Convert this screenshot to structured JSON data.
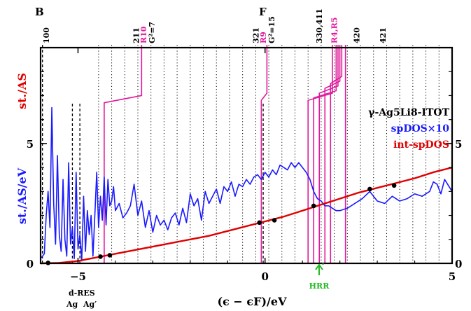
{
  "chart_data": {
    "type": "line",
    "xlim": [
      -6,
      5
    ],
    "ylim": [
      0,
      9
    ],
    "x_ticks": [
      -5,
      0,
      5
    ],
    "x_tick_labels": [
      "−5",
      "0",
      "5"
    ],
    "y_ticks": [
      0,
      5
    ],
    "y_tick_labels": [
      "0",
      "5"
    ],
    "xlabel": "(ϵ − ϵF)/eV",
    "ylabel_left": "st./AS/eV",
    "ylabel_right": "st./AS",
    "legend": {
      "title": "γ-Ag5Li8-ITOT",
      "entries": [
        {
          "text": "spDOS×10",
          "color": "#1a1aff"
        },
        {
          "text": "int-spDOS",
          "color": "#e00000"
        }
      ],
      "placement": "right"
    },
    "colors": {
      "dos": "#1a1aff",
      "int": "#e00000",
      "hkl": "#e0199b",
      "hrr": "#22bb22",
      "axis": "#000000",
      "grid": "#000000"
    },
    "top_left_letter": "B",
    "top_mid_letter": "F",
    "dotted_lines_x": [
      -4.45,
      -4.1,
      -3.75,
      -3.4,
      -3.05,
      -2.7,
      -2.35,
      -2.0,
      -1.65,
      -1.3,
      -0.95,
      -0.6,
      -0.25,
      0.1,
      0.45,
      0.8,
      1.15,
      1.5,
      1.85,
      2.2,
      2.55,
      2.9,
      3.25,
      3.6,
      3.95,
      4.3,
      4.65
    ],
    "dashed_lines_x": [
      -5.95,
      -5.15,
      -4.95,
      -0.05
    ],
    "top_labels": [
      {
        "x": -5.85,
        "text": "100"
      },
      {
        "x": -3.45,
        "text": "211"
      },
      {
        "x": -0.25,
        "text": "321"
      },
      {
        "x": 1.45,
        "text": "330,411"
      },
      {
        "x": 2.45,
        "text": "420"
      },
      {
        "x": 3.15,
        "text": "421"
      }
    ],
    "pink_labels": [
      {
        "x": -3.25,
        "text": "R10",
        "sub": "G²=7"
      },
      {
        "x": -0.05,
        "text": "R9",
        "sub": "G²=15"
      },
      {
        "x": 1.85,
        "text": "R4,R5",
        "sub": ""
      }
    ],
    "pink_lines": [
      {
        "x_bottom": -4.3,
        "x_top": -3.3,
        "y_break": 7.0,
        "y_top": 8.3
      },
      {
        "x_bottom": -0.1,
        "x_top": 0.05,
        "y_break": 7.1,
        "y_top": 8.3
      },
      {
        "x_bottom": 1.15,
        "x_top": 1.8,
        "y_break": 7.1,
        "y_top": 8.4
      },
      {
        "x_bottom": 1.3,
        "x_top": 1.9,
        "y_break": 7.2,
        "y_top": 8.4
      },
      {
        "x_bottom": 1.45,
        "x_top": 1.95,
        "y_break": 7.4,
        "y_top": 8.4
      },
      {
        "x_bottom": 1.6,
        "x_top": 2.0,
        "y_break": 7.6,
        "y_top": 8.4
      },
      {
        "x_bottom": 1.75,
        "x_top": 2.05,
        "y_break": 7.8,
        "y_top": 8.4
      },
      {
        "x_bottom": 2.15,
        "x_top": 2.15,
        "y_break": 8.0,
        "y_top": 8.4
      }
    ],
    "hrr_x": 1.55,
    "hrr_label": "HRR",
    "bottom_labels": [
      "d-RES",
      "Ag",
      "Ag′"
    ],
    "int_dos": {
      "x": [
        -6,
        -5.5,
        -5,
        -4.5,
        -4,
        -3.5,
        -3,
        -2.5,
        -2,
        -1.5,
        -1,
        -0.5,
        0,
        0.5,
        1,
        1.5,
        2,
        2.5,
        3,
        3.5,
        4,
        4.5,
        5
      ],
      "y": [
        0,
        0.02,
        0.1,
        0.25,
        0.4,
        0.55,
        0.7,
        0.85,
        1.0,
        1.15,
        1.35,
        1.55,
        1.75,
        1.95,
        2.2,
        2.45,
        2.7,
        2.95,
        3.15,
        3.35,
        3.55,
        3.8,
        4.0
      ]
    },
    "int_markers": [
      {
        "x": -5.8,
        "y": 0.02
      },
      {
        "x": -4.4,
        "y": 0.28
      },
      {
        "x": -4.15,
        "y": 0.34
      },
      {
        "x": -0.15,
        "y": 1.7
      },
      {
        "x": 0.25,
        "y": 1.8
      },
      {
        "x": 1.3,
        "y": 2.4
      },
      {
        "x": 2.8,
        "y": 3.1
      },
      {
        "x": 3.45,
        "y": 3.25
      }
    ],
    "sp_dos": {
      "x": [
        -6,
        -5.9,
        -5.85,
        -5.8,
        -5.75,
        -5.7,
        -5.65,
        -5.6,
        -5.55,
        -5.5,
        -5.45,
        -5.4,
        -5.35,
        -5.3,
        -5.25,
        -5.2,
        -5.15,
        -5.1,
        -5.05,
        -5.0,
        -4.95,
        -4.9,
        -4.85,
        -4.8,
        -4.75,
        -4.7,
        -4.65,
        -4.6,
        -4.55,
        -4.5,
        -4.45,
        -4.4,
        -4.35,
        -4.3,
        -4.25,
        -4.2,
        -4.15,
        -4.1,
        -4.05,
        -4.0,
        -3.9,
        -3.8,
        -3.7,
        -3.6,
        -3.5,
        -3.4,
        -3.3,
        -3.2,
        -3.1,
        -3.0,
        -2.9,
        -2.8,
        -2.7,
        -2.6,
        -2.5,
        -2.4,
        -2.3,
        -2.2,
        -2.1,
        -2.0,
        -1.9,
        -1.8,
        -1.7,
        -1.6,
        -1.5,
        -1.4,
        -1.3,
        -1.2,
        -1.1,
        -1.0,
        -0.9,
        -0.8,
        -0.7,
        -0.6,
        -0.5,
        -0.4,
        -0.3,
        -0.2,
        -0.1,
        0.0,
        0.1,
        0.2,
        0.3,
        0.4,
        0.5,
        0.6,
        0.7,
        0.8,
        0.9,
        1.0,
        1.1,
        1.2,
        1.3,
        1.4,
        1.5,
        1.6,
        1.7,
        1.8,
        1.9,
        2.0,
        2.2,
        2.4,
        2.6,
        2.8,
        3.0,
        3.2,
        3.4,
        3.6,
        3.8,
        4.0,
        4.2,
        4.4,
        4.5,
        4.6,
        4.7,
        4.8,
        5.0
      ],
      "y": [
        0.2,
        0.4,
        2.0,
        3.0,
        1.5,
        6.5,
        2.5,
        0.8,
        4.5,
        1.2,
        0.5,
        3.5,
        1.0,
        0.3,
        4.2,
        0.8,
        1.5,
        0.2,
        3.8,
        0.6,
        1.2,
        0.1,
        2.8,
        0.5,
        2.2,
        1.2,
        2.0,
        0.3,
        2.0,
        3.8,
        1.5,
        2.8,
        1.8,
        3.6,
        1.6,
        3.5,
        2.4,
        2.6,
        3.2,
        2.2,
        2.5,
        1.9,
        2.1,
        2.4,
        3.3,
        2.0,
        2.6,
        1.5,
        2.2,
        1.3,
        2.0,
        1.6,
        1.8,
        1.4,
        1.9,
        2.1,
        1.6,
        2.3,
        1.7,
        2.9,
        2.4,
        2.7,
        1.8,
        3.0,
        2.5,
        2.8,
        3.1,
        2.5,
        3.2,
        3.0,
        3.4,
        2.8,
        3.3,
        3.2,
        3.5,
        3.3,
        3.6,
        3.7,
        3.5,
        3.8,
        3.6,
        3.9,
        3.7,
        4.1,
        4.0,
        3.9,
        4.2,
        4.0,
        4.2,
        4.0,
        3.8,
        3.5,
        3.0,
        2.7,
        2.6,
        2.4,
        2.4,
        2.3,
        2.2,
        2.2,
        2.3,
        2.5,
        2.7,
        3.0,
        2.6,
        2.5,
        2.8,
        2.6,
        2.7,
        2.9,
        2.8,
        3.0,
        3.4,
        3.3,
        2.9,
        3.5,
        3.0
      ]
    }
  }
}
